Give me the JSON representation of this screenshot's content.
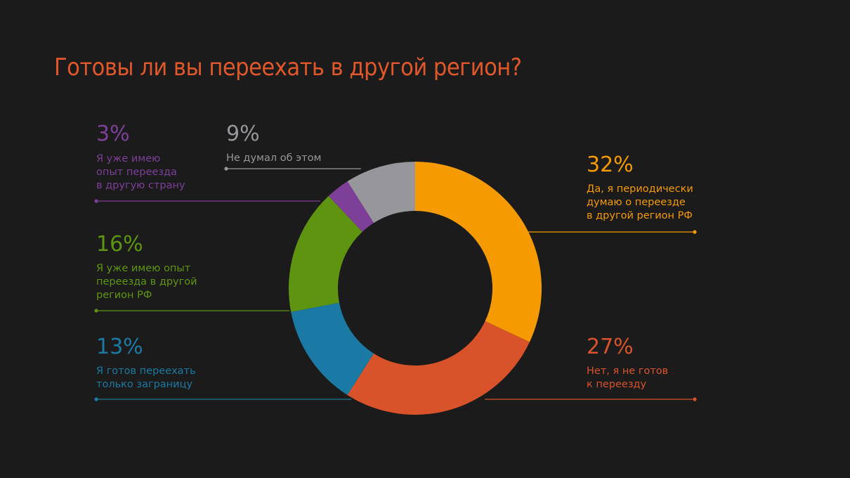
{
  "chart_data": {
    "type": "pie",
    "title": "Готовы ли вы переехать в другой регион?",
    "title_color": "#e0572a",
    "slices": [
      {
        "percent_label": "32%",
        "value": 32,
        "label_lines": [
          "Да, я периодически",
          "думаю о переезде",
          "в другой регион РФ"
        ],
        "color": "#f59a00"
      },
      {
        "percent_label": "27%",
        "value": 27,
        "label_lines": [
          "Нет, я не готов",
          "к переезду"
        ],
        "color": "#d9532a"
      },
      {
        "percent_label": "13%",
        "value": 13,
        "label_lines": [
          "Я готов переехать",
          "только заграницу"
        ],
        "color": "#1b7aa3"
      },
      {
        "percent_label": "16%",
        "value": 16,
        "label_lines": [
          "Я уже имею опыт",
          "переезда в другой",
          "регион РФ"
        ],
        "color": "#5f9410"
      },
      {
        "percent_label": "3%",
        "value": 3,
        "label_lines": [
          "Я уже имею",
          "опыт переезда",
          "в другую страну"
        ],
        "color": "#7d3f98"
      },
      {
        "percent_label": "9%",
        "value": 9,
        "label_lines": [
          "Не думал об этом"
        ],
        "color": "#97979b"
      }
    ]
  }
}
